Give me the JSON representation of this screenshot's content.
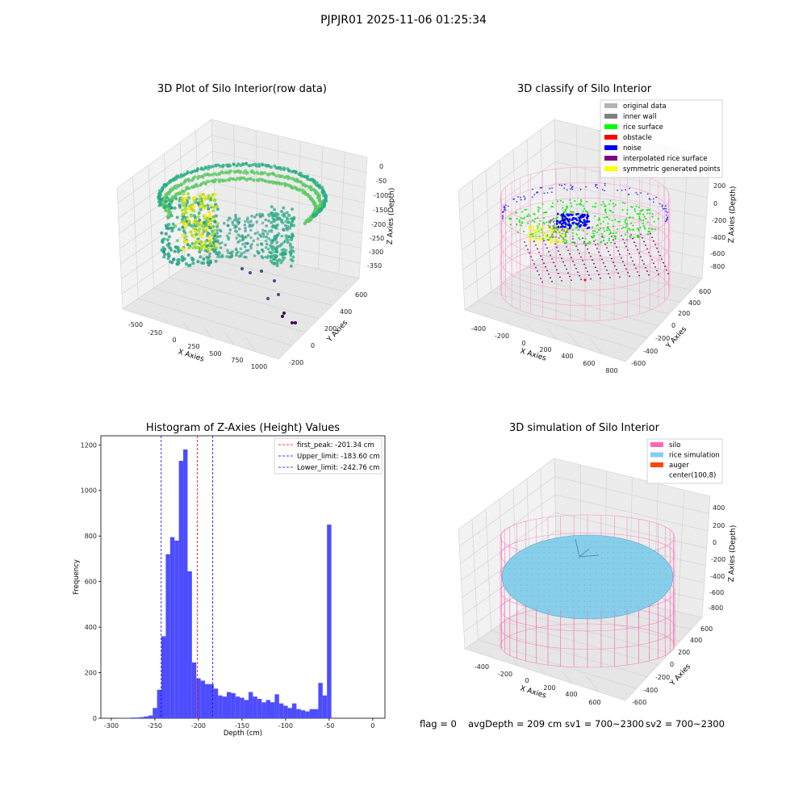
{
  "suptitle": "PJPJR01 2025-11-06 01:25:34",
  "status": {
    "flag": "flag = 0",
    "avg_depth": "avgDepth = 209 cm",
    "sv1": "sv1 = 700~2300",
    "sv2": "sv2 = 700~2300"
  },
  "chart_data": [
    {
      "type": "scatter",
      "title": "3D Plot of Silo Interior(row data)",
      "xlabel": "X Axies",
      "ylabel": "Y Axies",
      "zlabel": "Z Axies (Depth)",
      "x_ticks": [
        "-500",
        "-250",
        "0",
        "250",
        "500",
        "750",
        "1000"
      ],
      "y_ticks": [
        "-200",
        "0",
        "200",
        "400",
        "600"
      ],
      "z_ticks": [
        "0",
        "-50",
        "-100",
        "-150",
        "-200",
        "-250",
        "-300",
        "-350"
      ],
      "colormap": "viridis"
    },
    {
      "type": "scatter",
      "title": "3D classify of Silo Interior",
      "xlabel": "X Axies",
      "ylabel": "Y Axies",
      "zlabel": "Z Axies (Depth)",
      "x_ticks": [
        "-400",
        "-200",
        "0",
        "200",
        "400",
        "600",
        "800"
      ],
      "y_ticks": [
        "-600",
        "-400",
        "-200",
        "0",
        "200",
        "400",
        "600"
      ],
      "z_ticks": [
        "200",
        "0",
        "-200",
        "-400",
        "-600",
        "-800"
      ],
      "legend_position": "top-right",
      "legend": [
        {
          "name": "original data",
          "color": "#b3b3b3"
        },
        {
          "name": "inner wall",
          "color": "#808080"
        },
        {
          "name": "rice surface",
          "color": "#00ff00"
        },
        {
          "name": "obstacle",
          "color": "#ff0000"
        },
        {
          "name": "noise",
          "color": "#0000ff"
        },
        {
          "name": "interpolated rice surface",
          "color": "#800080"
        },
        {
          "name": "symmetric generated points",
          "color": "#ffff00"
        }
      ]
    },
    {
      "type": "bar",
      "title": "Histogram of Z-Axies (Height) Values",
      "xlabel": "Depth (cm)",
      "ylabel": "Frequency",
      "xlim": [
        -312,
        14
      ],
      "ylim": [
        0,
        1240
      ],
      "x_ticks": [
        -300,
        -250,
        -200,
        -150,
        -100,
        -50,
        0
      ],
      "y_ticks": [
        0,
        200,
        400,
        600,
        800,
        1000,
        1200
      ],
      "bar_color": "#4d4dff",
      "bin_start": -292.5,
      "bin_width": 5,
      "values": [
        1,
        1,
        2,
        3,
        3,
        5,
        8,
        12,
        45,
        125,
        360,
        720,
        795,
        780,
        1130,
        1180,
        645,
        245,
        175,
        165,
        150,
        150,
        130,
        100,
        95,
        115,
        110,
        95,
        90,
        80,
        115,
        95,
        85,
        70,
        80,
        70,
        105,
        65,
        55,
        45,
        65,
        40,
        35,
        30,
        40,
        40,
        155,
        100,
        850
      ],
      "reference_lines": [
        {
          "name": "first_peak: -201.34 cm",
          "value": -201.34,
          "color": "#ff0000"
        },
        {
          "name": "Upper_limit: -183.60 cm",
          "value": -183.6,
          "color": "#0000ff"
        },
        {
          "name": "Lower_limit: -242.76 cm",
          "value": -242.76,
          "color": "#0000ff"
        }
      ],
      "legend_position": "top-right"
    },
    {
      "type": "scatter",
      "title": "3D simulation of Silo Interior",
      "xlabel": "X Axies",
      "ylabel": "Y Axies",
      "zlabel": "Z Axies (Depth)",
      "x_ticks": [
        "-400",
        "-200",
        "0",
        "200",
        "400",
        "600"
      ],
      "y_ticks": [
        "-600",
        "-400",
        "-200",
        "0",
        "200",
        "400",
        "600"
      ],
      "z_ticks": [
        "400",
        "200",
        "0",
        "-200",
        "-400",
        "-600",
        "-800"
      ],
      "legend_position": "top-right",
      "legend": [
        {
          "name": "silo",
          "color": "#ff69b4"
        },
        {
          "name": "rice simulation",
          "color": "#87ceeb"
        },
        {
          "name": "auger",
          "color": "#ff4500"
        },
        {
          "name": "center(100,8)",
          "color": "#ffffff"
        }
      ]
    }
  ]
}
